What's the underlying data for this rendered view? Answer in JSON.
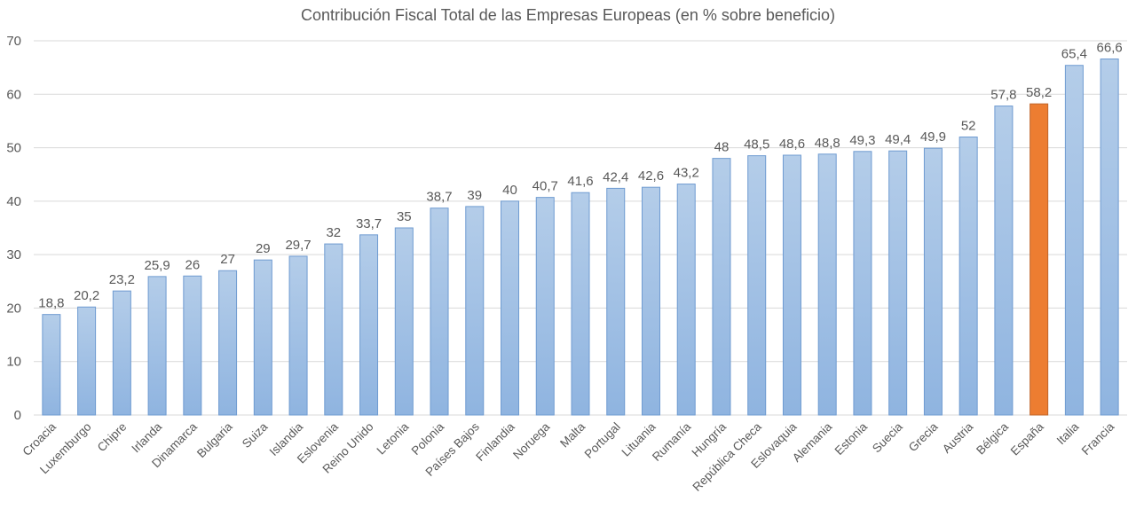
{
  "chart_data": {
    "type": "bar",
    "title": "Contribución Fiscal Total de las Empresas Europeas (en % sobre beneficio)",
    "xlabel": "",
    "ylabel": "",
    "ylim": [
      0,
      70
    ],
    "yticks": [
      0,
      10,
      20,
      30,
      40,
      50,
      60,
      70
    ],
    "grid": true,
    "legend": "none",
    "decimal_separator": ",",
    "categories": [
      "Croacia",
      "Luxemburgo",
      "Chipre",
      "Irlanda",
      "Dinamarca",
      "Bulgaria",
      "Suiza",
      "Islandia",
      "Eslovenia",
      "Reino Unido",
      "Letonia",
      "Polonia",
      "Países Bajos",
      "Finlandia",
      "Noruega",
      "Malta",
      "Portugal",
      "Lituania",
      "Rumanía",
      "Hungría",
      "República Checa",
      "Eslovaquia",
      "Alemania",
      "Estonia",
      "Suecia",
      "Grecia",
      "Austria",
      "Bélgica",
      "España",
      "Italia",
      "Francia"
    ],
    "values": [
      18.8,
      20.2,
      23.2,
      25.9,
      26,
      27,
      29,
      29.7,
      32,
      33.7,
      35,
      38.7,
      39,
      40,
      40.7,
      41.6,
      42.4,
      42.6,
      43.2,
      48,
      48.5,
      48.6,
      48.8,
      49.3,
      49.4,
      49.9,
      52,
      57.8,
      58.2,
      65.4,
      66.6
    ],
    "data_labels": [
      "18,8",
      "20,2",
      "23,2",
      "25,9",
      "26",
      "27",
      "29",
      "29,7",
      "32",
      "33,7",
      "35",
      "38,7",
      "39",
      "40",
      "40,7",
      "41,6",
      "42,4",
      "42,6",
      "43,2",
      "48",
      "48,5",
      "48,6",
      "48,8",
      "49,3",
      "49,4",
      "49,9",
      "52",
      "57,8",
      "58,2",
      "65,4",
      "66,6"
    ],
    "colors": {
      "default_bar_top": "#b4cde9",
      "default_bar_bottom": "#8fb4e0",
      "default_bar_border": "#6f9bd1",
      "highlight_bar": "#ed7d31",
      "highlight_border": "#c0652a",
      "highlight_category": "España"
    }
  }
}
